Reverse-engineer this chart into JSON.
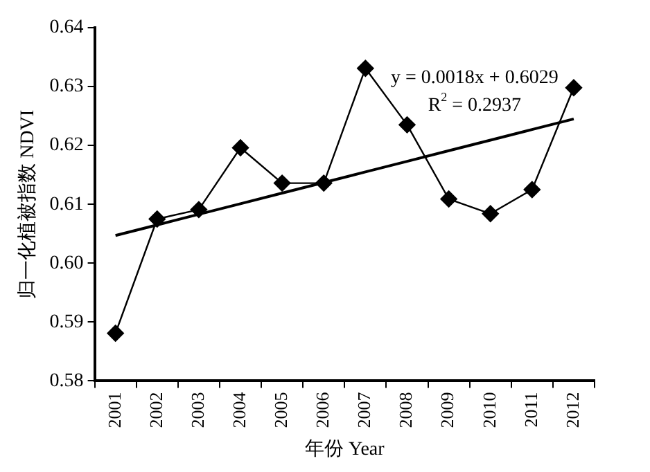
{
  "chart_data": {
    "type": "line",
    "xlabel": "年份 Year",
    "ylabel": "归一化植被指数 NDVI",
    "categories": [
      "2001",
      "2002",
      "2003",
      "2004",
      "2005",
      "2006",
      "2007",
      "2008",
      "2009",
      "2010",
      "2011",
      "2012"
    ],
    "series": [
      {
        "color": "#000000",
        "marker": "diamond",
        "values": [
          0.5881,
          0.6075,
          0.6091,
          0.6196,
          0.6136,
          0.6136,
          0.6331,
          0.6235,
          0.6109,
          0.6084,
          0.6125,
          0.6298
        ]
      },
      {
        "type": "line",
        "color": "#000000",
        "marker": "none",
        "values": [
          0.6047,
          0.6065,
          0.6083,
          0.6101,
          0.6119,
          0.6137,
          0.6155,
          0.6173,
          0.6191,
          0.6209,
          0.6227,
          0.6245
        ]
      }
    ],
    "ylim": [
      0.58,
      0.64
    ],
    "yticks": [
      0.58,
      0.59,
      {
        "value": 0.6,
        "label": "0.60"
      },
      0.61,
      0.62,
      0.63,
      0.64
    ],
    "annotations": [
      "y = 0.0018x + 0.6029",
      "R$^{2}$ = 0.2937"
    ],
    "grid": false,
    "legend": false,
    "line_style": "solid"
  }
}
